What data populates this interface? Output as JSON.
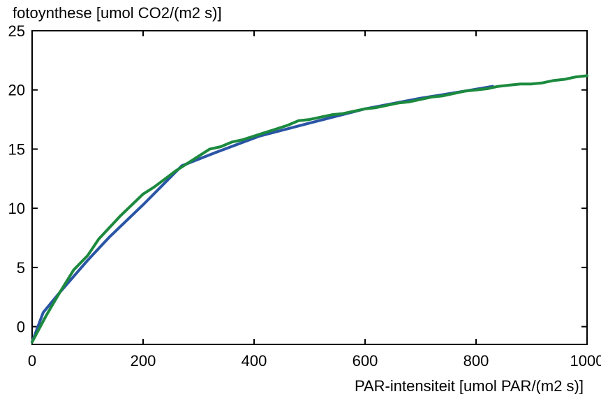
{
  "chart_data": {
    "type": "line",
    "ylabel": "fotoynthese [umol CO2/(m2 s)]",
    "xlabel": "PAR-intensiteit [umol PAR/(m2 s)]",
    "xlim": [
      0,
      1000
    ],
    "ylim": [
      -1.5,
      25
    ],
    "xticks": [
      0,
      200,
      400,
      600,
      800,
      1000
    ],
    "yticks": [
      0,
      5,
      10,
      15,
      20,
      25
    ],
    "grid": false,
    "series": [
      {
        "color": "#2a55a5",
        "x": [
          0,
          20,
          50,
          100,
          140,
          200,
          270,
          330,
          410,
          500,
          600,
          700,
          780,
          830
        ],
        "y": [
          -1.3,
          1.2,
          2.9,
          5.6,
          7.6,
          10.3,
          13.6,
          14.7,
          16.1,
          17.2,
          18.4,
          19.3,
          19.9,
          20.3
        ]
      },
      {
        "color": "#1c8a3e",
        "x": [
          0,
          25,
          50,
          75,
          100,
          120,
          140,
          160,
          180,
          200,
          220,
          240,
          260,
          280,
          300,
          320,
          340,
          360,
          380,
          400,
          420,
          440,
          460,
          480,
          500,
          520,
          540,
          560,
          580,
          600,
          620,
          640,
          660,
          680,
          700,
          720,
          740,
          760,
          780,
          800,
          820,
          840,
          860,
          880,
          900,
          920,
          940,
          960,
          980,
          1000
        ],
        "y": [
          -1.3,
          0.9,
          2.9,
          4.8,
          6.0,
          7.4,
          8.4,
          9.4,
          10.3,
          11.2,
          11.8,
          12.5,
          13.2,
          13.8,
          14.4,
          15.0,
          15.2,
          15.6,
          15.8,
          16.1,
          16.4,
          16.7,
          17.0,
          17.4,
          17.5,
          17.7,
          17.9,
          18.0,
          18.2,
          18.4,
          18.5,
          18.7,
          18.9,
          19.0,
          19.2,
          19.4,
          19.5,
          19.7,
          19.9,
          20.0,
          20.1,
          20.3,
          20.4,
          20.5,
          20.5,
          20.6,
          20.8,
          20.9,
          21.1,
          21.2
        ]
      }
    ]
  }
}
